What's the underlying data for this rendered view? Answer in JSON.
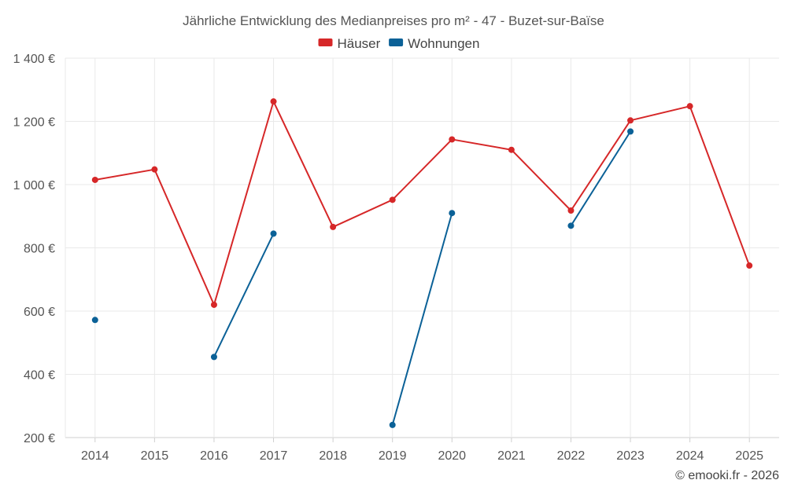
{
  "chart_data": {
    "type": "line",
    "title": "Jährliche Entwicklung des Medianpreises pro m² - 47 - Buzet-sur-Baïse",
    "xlabel": "",
    "ylabel": "",
    "categories": [
      "2014",
      "2015",
      "2016",
      "2017",
      "2018",
      "2019",
      "2020",
      "2021",
      "2022",
      "2023",
      "2024",
      "2025"
    ],
    "ylim": [
      200,
      1400
    ],
    "yticks": [
      200,
      400,
      600,
      800,
      1000,
      1200,
      1400
    ],
    "ytick_labels": [
      "200 €",
      "400 €",
      "600 €",
      "800 €",
      "1 000 €",
      "1 200 €",
      "1 400 €"
    ],
    "grid": true,
    "legend_position": "top-center",
    "series": [
      {
        "name": "Häuser",
        "color": "#d62728",
        "values": [
          1015,
          1048,
          620,
          1263,
          866,
          952,
          1143,
          1110,
          918,
          1203,
          1248,
          744
        ]
      },
      {
        "name": "Wohnungen",
        "color": "#0b6197",
        "values": [
          572,
          null,
          455,
          845,
          null,
          240,
          910,
          null,
          870,
          1168,
          null,
          null
        ]
      }
    ],
    "credit": "© emooki.fr - 2026"
  }
}
